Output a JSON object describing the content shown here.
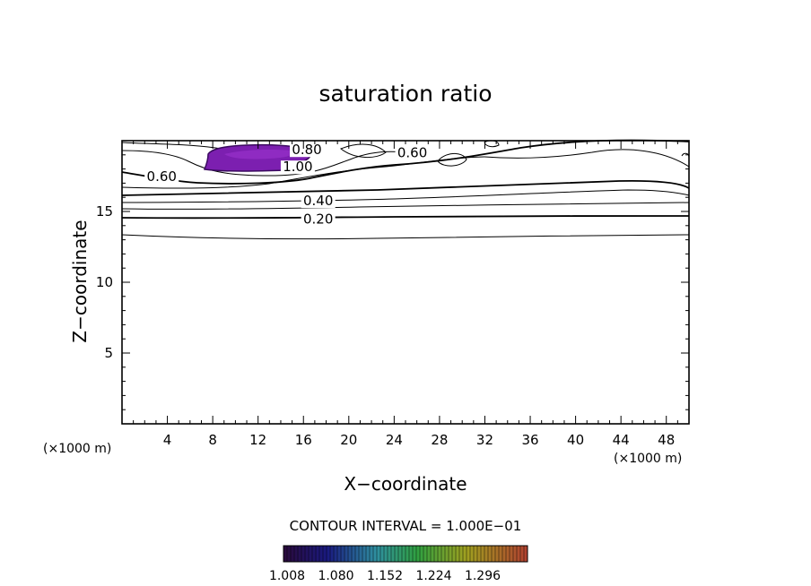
{
  "chart_data": {
    "type": "contour",
    "title": "saturation ratio",
    "xlabel": "X−coordinate",
    "ylabel": "Z−coordinate",
    "x_unit": "(×1000 m)",
    "y_unit": "(×1000 m)",
    "xlim": [
      0,
      50
    ],
    "ylim": [
      0,
      20
    ],
    "x_ticks": [
      4,
      8,
      12,
      16,
      20,
      24,
      28,
      32,
      36,
      40,
      44,
      48
    ],
    "y_ticks": [
      5,
      10,
      15
    ],
    "contour_interval_text": "CONTOUR INTERVAL = 1.000E−01",
    "contour_labels": [
      {
        "text": "0.80",
        "x": 16.3,
        "z": 19.1
      },
      {
        "text": "0.60",
        "x": 25.6,
        "z": 18.9
      },
      {
        "text": "1.00",
        "x": 15.5,
        "z": 17.9
      },
      {
        "text": "0.60",
        "x": 3.5,
        "z": 17.2
      },
      {
        "text": "0.40",
        "x": 17.3,
        "z": 15.5
      },
      {
        "text": "0.20",
        "x": 17.3,
        "z": 14.2
      }
    ],
    "shaded_region": {
      "min_value": 1.0,
      "x_range": [
        7.5,
        16.5
      ],
      "z_range": [
        17.6,
        19.5
      ]
    },
    "colorbar": {
      "tick_labels": [
        "1.008",
        "1.080",
        "1.152",
        "1.224",
        "1.296"
      ],
      "colors": [
        "#2a0a3a",
        "#1a1a80",
        "#2f8fa0",
        "#30a040",
        "#a0a020",
        "#b04030"
      ]
    }
  }
}
